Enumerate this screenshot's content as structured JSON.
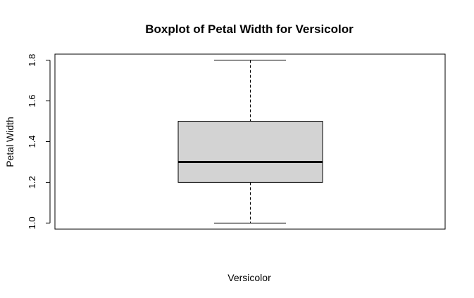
{
  "chart_data": {
    "type": "box",
    "title": "Boxplot of Petal Width for Versicolor",
    "xlabel": "Versicolor",
    "ylabel": "Petal Width",
    "ylim": [
      0.97,
      1.83
    ],
    "yticks": [
      1.0,
      1.2,
      1.4,
      1.6,
      1.8
    ],
    "ytick_labels": [
      "1.0",
      "1.2",
      "1.4",
      "1.6",
      "1.8"
    ],
    "grid": false,
    "box": {
      "min": 1.0,
      "q1": 1.2,
      "median": 1.3,
      "q3": 1.5,
      "max": 1.8,
      "fill": "#d3d3d3"
    }
  }
}
